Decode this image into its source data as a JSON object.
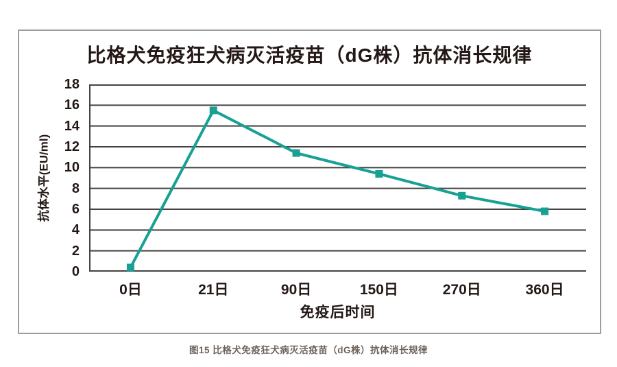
{
  "figure": {
    "caption": "图15 比格犬免疫狂犬病灭活疫苗（dG株）抗体消长规律"
  },
  "colors": {
    "line": "#16a194",
    "grid": "#474040",
    "axis": "#474040",
    "text": "#231815",
    "border": "#9d9d9d",
    "caption_text": "#6f625c"
  },
  "chart_data": {
    "type": "line",
    "title": "比格犬免疫狂犬病灭活疫苗（dG株）抗体消长规律",
    "categories": [
      "0日",
      "21日",
      "90日",
      "150日",
      "270日",
      "360日"
    ],
    "series": [
      {
        "name": "抗体水平",
        "values": [
          0.4,
          15.5,
          11.4,
          9.4,
          7.3,
          5.8
        ]
      }
    ],
    "xlabel": "免疫后时间",
    "ylabel": "抗体水平(EU/ml)",
    "ylim": [
      0,
      18
    ],
    "ytick_step": 2,
    "yticks": [
      "18",
      "16",
      "14",
      "12",
      "10",
      "8",
      "6",
      "4",
      "2",
      "0"
    ],
    "grid": true,
    "legend_position": "none",
    "marker": "square",
    "marker_size": 11,
    "line_width": 4
  }
}
